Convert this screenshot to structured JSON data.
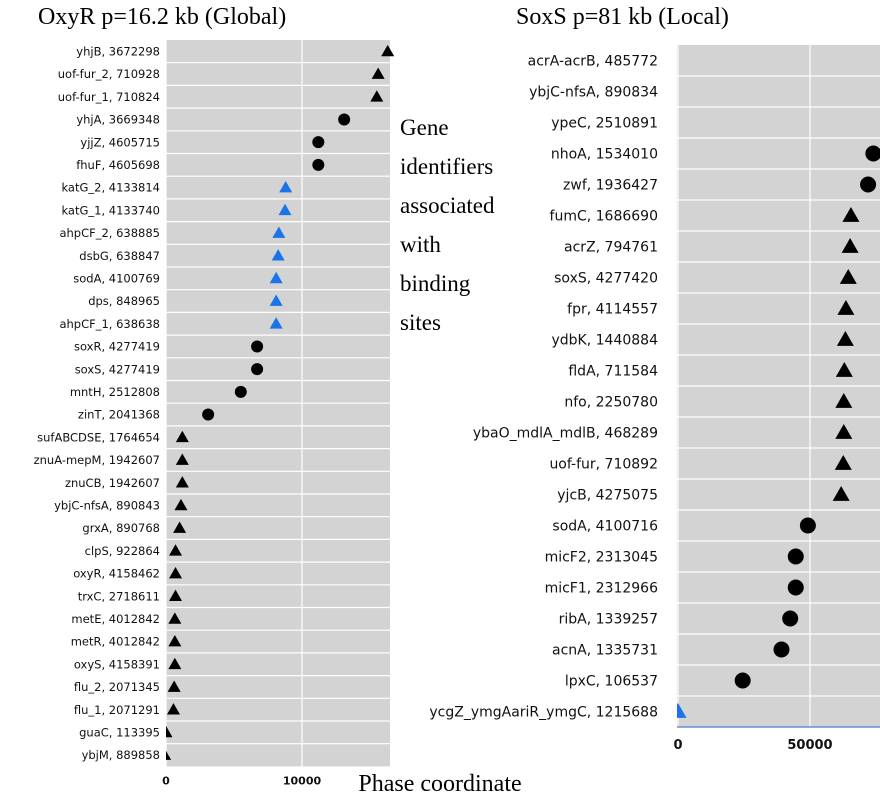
{
  "chart_data": [
    {
      "type": "scatter",
      "title": "OxyR p=16.2 kb (Global)",
      "x_ticks": [
        0,
        10000
      ],
      "xlim": [
        -500,
        16500
      ],
      "grid": true,
      "marker_legend": {
        "triangle_black": "black triangle",
        "triangle_blue": "blue triangle",
        "circle_black": "black circle"
      },
      "points": [
        {
          "label": "yhjB, 3672298",
          "x": 16300,
          "marker": "triangle",
          "color": "#000000"
        },
        {
          "label": "uof-fur_2, 710928",
          "x": 15600,
          "marker": "triangle",
          "color": "#000000"
        },
        {
          "label": "uof-fur_1, 710824",
          "x": 15500,
          "marker": "triangle",
          "color": "#000000"
        },
        {
          "label": "yhjA, 3669348",
          "x": 13100,
          "marker": "circle",
          "color": "#000000"
        },
        {
          "label": "yjjZ, 4605715",
          "x": 11200,
          "marker": "circle",
          "color": "#000000"
        },
        {
          "label": "fhuF, 4605698",
          "x": 11200,
          "marker": "circle",
          "color": "#000000"
        },
        {
          "label": "katG_2, 4133814",
          "x": 8800,
          "marker": "triangle",
          "color": "#1a73e8"
        },
        {
          "label": "katG_1, 4133740",
          "x": 8750,
          "marker": "triangle",
          "color": "#1a73e8"
        },
        {
          "label": "ahpCF_2, 638885",
          "x": 8300,
          "marker": "triangle",
          "color": "#1a73e8"
        },
        {
          "label": "dsbG, 638847",
          "x": 8250,
          "marker": "triangle",
          "color": "#1a73e8"
        },
        {
          "label": "sodA, 4100769",
          "x": 8100,
          "marker": "triangle",
          "color": "#1a73e8"
        },
        {
          "label": "dps, 848965",
          "x": 8100,
          "marker": "triangle",
          "color": "#1a73e8"
        },
        {
          "label": "ahpCF_1, 638638",
          "x": 8100,
          "marker": "triangle",
          "color": "#1a73e8"
        },
        {
          "label": "soxR, 4277419",
          "x": 6700,
          "marker": "circle",
          "color": "#000000"
        },
        {
          "label": "soxS, 4277419",
          "x": 6700,
          "marker": "circle",
          "color": "#000000"
        },
        {
          "label": "mntH, 2512808",
          "x": 5500,
          "marker": "circle",
          "color": "#000000"
        },
        {
          "label": "zinT, 2041368",
          "x": 3100,
          "marker": "circle",
          "color": "#000000"
        },
        {
          "label": "sufABCDSE, 1764654",
          "x": 1200,
          "marker": "triangle",
          "color": "#000000"
        },
        {
          "label": "znuA-mepM, 1942607",
          "x": 1200,
          "marker": "triangle",
          "color": "#000000"
        },
        {
          "label": "znuCB, 1942607",
          "x": 1200,
          "marker": "triangle",
          "color": "#000000"
        },
        {
          "label": "ybjC-nfsA, 890843",
          "x": 1100,
          "marker": "triangle",
          "color": "#000000"
        },
        {
          "label": "grxA, 890768",
          "x": 1000,
          "marker": "triangle",
          "color": "#000000"
        },
        {
          "label": "clpS, 922864",
          "x": 700,
          "marker": "triangle",
          "color": "#000000"
        },
        {
          "label": "oxyR, 4158462",
          "x": 700,
          "marker": "triangle",
          "color": "#000000"
        },
        {
          "label": "trxC, 2718611",
          "x": 700,
          "marker": "triangle",
          "color": "#000000"
        },
        {
          "label": "metE, 4012842",
          "x": 650,
          "marker": "triangle",
          "color": "#000000"
        },
        {
          "label": "metR, 4012842",
          "x": 650,
          "marker": "triangle",
          "color": "#000000"
        },
        {
          "label": "oxyS, 4158391",
          "x": 650,
          "marker": "triangle",
          "color": "#000000"
        },
        {
          "label": "flu_2, 2071345",
          "x": 600,
          "marker": "triangle",
          "color": "#000000"
        },
        {
          "label": "flu_1, 2071291",
          "x": 550,
          "marker": "triangle",
          "color": "#000000"
        },
        {
          "label": "guaC, 113395",
          "x": 0,
          "marker": "triangle",
          "color": "#000000"
        },
        {
          "label": "ybjM, 889858",
          "x": -100,
          "marker": "triangle",
          "color": "#000000"
        }
      ]
    },
    {
      "type": "scatter",
      "title": "SoxS p=81 kb (Local)",
      "x_ticks": [
        0,
        50000
      ],
      "xlim": [
        0,
        81000
      ],
      "grid": true,
      "points": [
        {
          "label": "acrA-acrB, 485772",
          "x": 80500,
          "marker": "triangle",
          "color": "#1a73e8"
        },
        {
          "label": "ybjC-nfsA, 890834",
          "x": 80500,
          "marker": "triangle",
          "color": "#1a73e8"
        },
        {
          "label": "ypeC, 2510891",
          "x": 80500,
          "marker": "triangle",
          "color": "#1a73e8"
        },
        {
          "label": "nhoA, 1534010",
          "x": 74000,
          "marker": "circle",
          "color": "#000000"
        },
        {
          "label": "zwf, 1936427",
          "x": 72000,
          "marker": "circle",
          "color": "#000000"
        },
        {
          "label": "fumC, 1686690",
          "x": 65500,
          "marker": "triangle",
          "color": "#000000"
        },
        {
          "label": "acrZ, 794761",
          "x": 65200,
          "marker": "triangle",
          "color": "#000000"
        },
        {
          "label": "soxS, 4277420",
          "x": 64500,
          "marker": "triangle",
          "color": "#000000"
        },
        {
          "label": "fpr, 4114557",
          "x": 63600,
          "marker": "triangle",
          "color": "#000000"
        },
        {
          "label": "ydbK, 1440884",
          "x": 63400,
          "marker": "triangle",
          "color": "#000000"
        },
        {
          "label": "fldA, 711584",
          "x": 63000,
          "marker": "triangle",
          "color": "#000000"
        },
        {
          "label": "nfo, 2250780",
          "x": 62800,
          "marker": "triangle",
          "color": "#000000"
        },
        {
          "label": "ybaO_mdlA_mdlB, 468289",
          "x": 62800,
          "marker": "triangle",
          "color": "#000000"
        },
        {
          "label": "uof-fur, 710892",
          "x": 62600,
          "marker": "triangle",
          "color": "#000000"
        },
        {
          "label": "yjcB, 4275075",
          "x": 61800,
          "marker": "triangle",
          "color": "#000000"
        },
        {
          "label": "sodA, 4100716",
          "x": 49200,
          "marker": "circle",
          "color": "#000000"
        },
        {
          "label": "micF2, 2313045",
          "x": 44600,
          "marker": "circle",
          "color": "#000000"
        },
        {
          "label": "micF1, 2312966",
          "x": 44600,
          "marker": "circle",
          "color": "#000000"
        },
        {
          "label": "ribA, 1339257",
          "x": 42500,
          "marker": "circle",
          "color": "#000000"
        },
        {
          "label": "acnA, 1335731",
          "x": 39200,
          "marker": "circle",
          "color": "#000000"
        },
        {
          "label": "lpxC, 106537",
          "x": 24500,
          "marker": "circle",
          "color": "#000000"
        },
        {
          "label": "ycgZ_ymgAariR_ymgC, 1215688",
          "x": 0,
          "marker": "triangle",
          "color": "#1a73e8"
        }
      ]
    }
  ],
  "annotation": [
    "Gene",
    "identifiers",
    "associated",
    "with",
    "binding",
    "sites"
  ],
  "xlabel": "Phase coordinate",
  "colors": {
    "panel_bg": "#d3d3d3",
    "grid": "#ffffff",
    "black_marker": "#000000",
    "blue_marker": "#1a73e8",
    "axis_line": "#6a8fd0"
  }
}
